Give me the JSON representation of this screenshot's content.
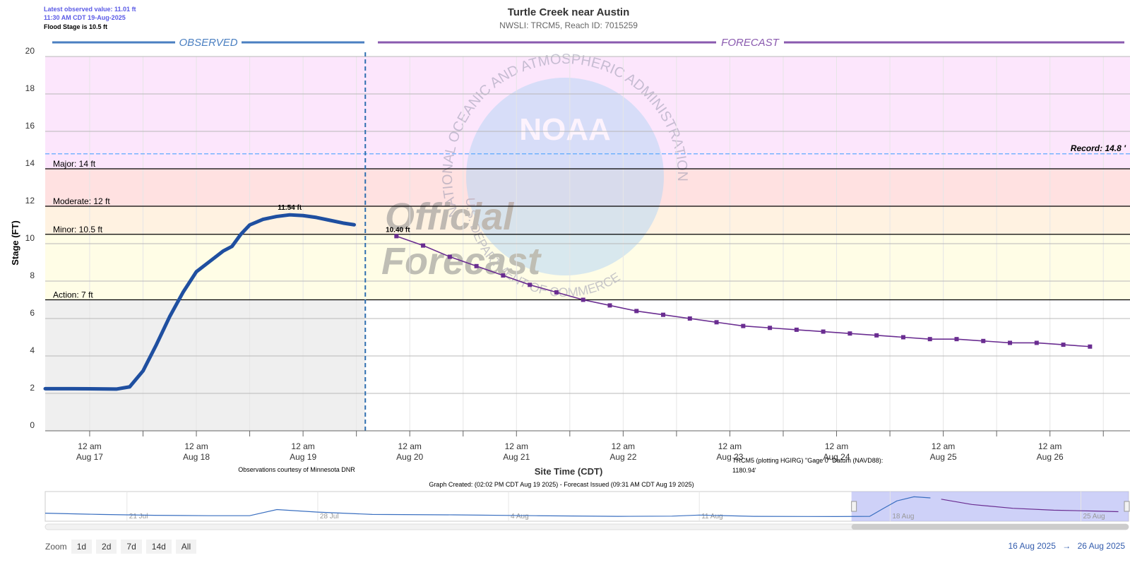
{
  "header": {
    "latest_observed": "Latest observed value: 11.01 ft",
    "latest_time": "11:30 AM CDT 19-Aug-2025",
    "flood_stage": "Flood Stage is 10.5 ft",
    "title": "Turtle Creek near Austin",
    "subtitle": "NWSLI: TRCM5, Reach ID: 7015259"
  },
  "watermark": {
    "ring_text": "NATIONAL OCEANIC AND ATMOSPHERIC ADMINISTRATION",
    "ring_text_lower": "U.S. DEPARTMENT OF COMMERCE",
    "logo_text": "NOAA",
    "line1": "Official",
    "line2": "Forecast"
  },
  "footer": {
    "observations_credit": "Observations courtesy of Minnesota DNR",
    "datum_note_1": "TRCM5 (plotting HGIRG) \"Gage 0\" Datum (NAVD88):",
    "datum_note_2": "1180.94'",
    "graph_created": "Graph Created: (02:02 PM CDT Aug 19 2025) - Forecast Issued (09:31 AM CDT Aug 19 2025)"
  },
  "navigator": {
    "labels": [
      "21 Jul",
      "28 Jul",
      "4 Aug",
      "11 Aug",
      "18 Aug",
      "25 Aug"
    ]
  },
  "zoom": {
    "label": "Zoom",
    "buttons": [
      "1d",
      "2d",
      "7d",
      "14d",
      "All"
    ]
  },
  "range": {
    "from": "16 Aug 2025",
    "arrow": "→",
    "to": "26 Aug 2025"
  },
  "colors": {
    "observed": "#1f4fa0",
    "forecast": "#6a2d91",
    "record": "#4da3ff",
    "major_band": "#fce6fc",
    "moderate_band": "#ffe1e1",
    "minor_band": "#fff2e1",
    "action_band": "#fffde6",
    "below_action_observed": "#efefef"
  },
  "chart_data": {
    "type": "line",
    "title": "Turtle Creek near Austin",
    "subtitle": "NWSLI: TRCM5, Reach ID: 7015259",
    "xlabel": "Site Time (CDT)",
    "ylabel": "Stage (FT)",
    "ylim": [
      0,
      20
    ],
    "xlim": [
      "2025-08-16T14:00",
      "2025-08-26T18:00"
    ],
    "y_ticks": [
      "0",
      "2",
      "4",
      "6",
      "8",
      "10",
      "12",
      "14",
      "16",
      "18",
      "20"
    ],
    "x_ticks": [
      {
        "t": "2025-08-17T00:00",
        "line1": "12 am",
        "line2": "Aug 17"
      },
      {
        "t": "2025-08-18T00:00",
        "line1": "12 am",
        "line2": "Aug 18"
      },
      {
        "t": "2025-08-19T00:00",
        "line1": "12 am",
        "line2": "Aug 19"
      },
      {
        "t": "2025-08-20T00:00",
        "line1": "12 am",
        "line2": "Aug 20"
      },
      {
        "t": "2025-08-21T00:00",
        "line1": "12 am",
        "line2": "Aug 21"
      },
      {
        "t": "2025-08-22T00:00",
        "line1": "12 am",
        "line2": "Aug 22"
      },
      {
        "t": "2025-08-23T00:00",
        "line1": "12 am",
        "line2": "Aug 23"
      },
      {
        "t": "2025-08-24T00:00",
        "line1": "12 am",
        "line2": "Aug 24"
      },
      {
        "t": "2025-08-25T00:00",
        "line1": "12 am",
        "line2": "Aug 25"
      },
      {
        "t": "2025-08-26T00:00",
        "line1": "12 am",
        "line2": "Aug 26"
      }
    ],
    "now": "2025-08-19T14:00",
    "section_labels": {
      "observed": "OBSERVED",
      "forecast": "FORECAST"
    },
    "thresholds": [
      {
        "name": "Action",
        "label": "Action: 7 ft",
        "value": 7
      },
      {
        "name": "Minor",
        "label": "Minor: 10.5 ft",
        "value": 10.5
      },
      {
        "name": "Moderate",
        "label": "Moderate: 12 ft",
        "value": 12
      },
      {
        "name": "Major",
        "label": "Major: 14 ft",
        "value": 14
      }
    ],
    "record": {
      "label": "Record: 14.8 '",
      "value": 14.8
    },
    "series": [
      {
        "name": "Observed",
        "peak_label": "11.54 ft",
        "peak_index": 17,
        "points": [
          [
            "2025-08-16T14:00",
            2.25
          ],
          [
            "2025-08-16T20:00",
            2.25
          ],
          [
            "2025-08-17T02:00",
            2.24
          ],
          [
            "2025-08-17T06:00",
            2.23
          ],
          [
            "2025-08-17T09:00",
            2.35
          ],
          [
            "2025-08-17T12:00",
            3.2
          ],
          [
            "2025-08-17T15:00",
            4.6
          ],
          [
            "2025-08-17T18:00",
            6.1
          ],
          [
            "2025-08-17T21:00",
            7.4
          ],
          [
            "2025-08-18T00:00",
            8.5
          ],
          [
            "2025-08-18T03:00",
            9.05
          ],
          [
            "2025-08-18T06:00",
            9.6
          ],
          [
            "2025-08-18T08:00",
            9.85
          ],
          [
            "2025-08-18T10:00",
            10.5
          ],
          [
            "2025-08-18T12:00",
            11.0
          ],
          [
            "2025-08-18T15:00",
            11.3
          ],
          [
            "2025-08-18T18:00",
            11.45
          ],
          [
            "2025-08-18T21:00",
            11.54
          ],
          [
            "2025-08-19T00:00",
            11.5
          ],
          [
            "2025-08-19T03:00",
            11.4
          ],
          [
            "2025-08-19T06:00",
            11.25
          ],
          [
            "2025-08-19T09:00",
            11.1
          ],
          [
            "2025-08-19T11:30",
            11.01
          ]
        ]
      },
      {
        "name": "Forecast",
        "first_label": "10.40 ft",
        "points": [
          [
            "2025-08-19T21:00",
            10.4
          ],
          [
            "2025-08-20T03:00",
            9.9
          ],
          [
            "2025-08-20T09:00",
            9.3
          ],
          [
            "2025-08-20T15:00",
            8.8
          ],
          [
            "2025-08-20T21:00",
            8.3
          ],
          [
            "2025-08-21T03:00",
            7.8
          ],
          [
            "2025-08-21T09:00",
            7.4
          ],
          [
            "2025-08-21T15:00",
            7.0
          ],
          [
            "2025-08-21T21:00",
            6.7
          ],
          [
            "2025-08-22T03:00",
            6.4
          ],
          [
            "2025-08-22T09:00",
            6.2
          ],
          [
            "2025-08-22T15:00",
            6.0
          ],
          [
            "2025-08-22T21:00",
            5.8
          ],
          [
            "2025-08-23T03:00",
            5.6
          ],
          [
            "2025-08-23T09:00",
            5.5
          ],
          [
            "2025-08-23T15:00",
            5.4
          ],
          [
            "2025-08-23T21:00",
            5.3
          ],
          [
            "2025-08-24T03:00",
            5.2
          ],
          [
            "2025-08-24T09:00",
            5.1
          ],
          [
            "2025-08-24T15:00",
            5.0
          ],
          [
            "2025-08-24T21:00",
            4.9
          ],
          [
            "2025-08-25T03:00",
            4.9
          ],
          [
            "2025-08-25T09:00",
            4.8
          ],
          [
            "2025-08-25T15:00",
            4.7
          ],
          [
            "2025-08-25T21:00",
            4.7
          ],
          [
            "2025-08-26T03:00",
            4.6
          ],
          [
            "2025-08-26T09:00",
            4.5
          ]
        ]
      }
    ],
    "navigator": {
      "xlim": [
        "2025-07-18T00:00",
        "2025-08-26T18:00"
      ],
      "ylim": [
        0,
        14
      ],
      "selection": [
        "2025-08-16T14:00",
        "2025-08-26T18:00"
      ],
      "observed": [
        [
          "2025-07-18T00:00",
          3.8
        ],
        [
          "2025-07-20T00:00",
          3.2
        ],
        [
          "2025-07-22T00:00",
          2.8
        ],
        [
          "2025-07-24T00:00",
          2.6
        ],
        [
          "2025-07-25T12:00",
          2.6
        ],
        [
          "2025-07-26T12:00",
          5.5
        ],
        [
          "2025-07-28T00:00",
          4.3
        ],
        [
          "2025-07-30T00:00",
          3.2
        ],
        [
          "2025-08-02T00:00",
          3.0
        ],
        [
          "2025-08-05T00:00",
          2.6
        ],
        [
          "2025-08-08T00:00",
          2.3
        ],
        [
          "2025-08-10T00:00",
          2.4
        ],
        [
          "2025-08-11T00:00",
          2.9
        ],
        [
          "2025-08-13T00:00",
          2.3
        ],
        [
          "2025-08-16T00:00",
          2.2
        ],
        [
          "2025-08-17T06:00",
          2.3
        ],
        [
          "2025-08-17T18:00",
          6.0
        ],
        [
          "2025-08-18T06:00",
          9.6
        ],
        [
          "2025-08-18T21:00",
          11.54
        ],
        [
          "2025-08-19T11:30",
          11.01
        ]
      ],
      "forecast": [
        [
          "2025-08-19T21:00",
          10.4
        ],
        [
          "2025-08-21T00:00",
          7.9
        ],
        [
          "2025-08-22T12:00",
          6.1
        ],
        [
          "2025-08-24T00:00",
          5.2
        ],
        [
          "2025-08-25T12:00",
          4.8
        ],
        [
          "2025-08-26T09:00",
          4.5
        ]
      ]
    }
  }
}
